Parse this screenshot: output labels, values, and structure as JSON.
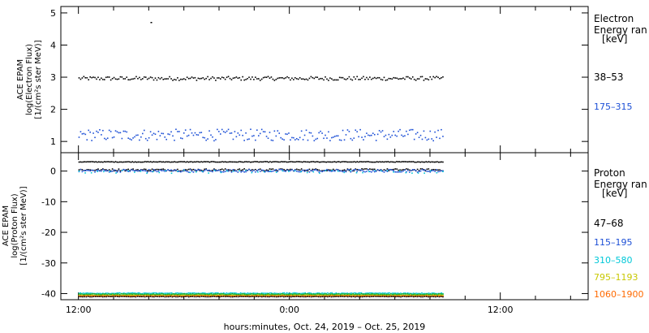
{
  "footer": {
    "xaxis_label": "hours:minutes, Oct. 24, 2019 – Oct. 25, 2019"
  },
  "x_tick_labels": [
    "12:00",
    "0:00",
    "12:00"
  ],
  "chart_data": [
    {
      "type": "scatter",
      "panel": "electron",
      "ylabel_lines": [
        "ACE EPAM",
        "log(Electron Flux)",
        "[1/(cm²s ster MeV)]"
      ],
      "legend_title_lines": [
        "Electron",
        "Energy ran",
        "[keV]"
      ],
      "x_unit": "hours from Oct. 24, 2019 12:00",
      "xlim": [
        -1,
        29
      ],
      "data_end": 20.7,
      "ylim": [
        0.65,
        5.2
      ],
      "yticks": [
        1,
        2,
        3,
        4,
        5
      ],
      "grid": false,
      "legend_placement": "right",
      "series": [
        {
          "name": "38–53",
          "color": "#000000",
          "level": 2.98,
          "jitter": 0.06,
          "count": 230
        },
        {
          "name": "175–315",
          "color": "#1c4fd6",
          "level": 1.22,
          "jitter": 0.18,
          "count": 230
        }
      ],
      "outliers": [
        {
          "x": 4.1,
          "y": 4.72
        }
      ]
    },
    {
      "type": "scatter",
      "panel": "proton",
      "ylabel_lines": [
        "ACE EPAM",
        "log(Proton Flux)",
        "[1/(cm²s ster MeV)]"
      ],
      "legend_title_lines": [
        "Proton",
        "Energy ran",
        "[keV]"
      ],
      "x_unit": "hours from Oct. 24, 2019 12:00",
      "xlim": [
        -1,
        29
      ],
      "data_end": 20.7,
      "ylim": [
        -42,
        6
      ],
      "yticks": [
        0,
        -10,
        -20,
        -30,
        -40
      ],
      "grid": false,
      "legend_placement": "right",
      "series": [
        {
          "name": "",
          "color": "#000000",
          "level": 3.2,
          "jitter": 0.1,
          "count": 260
        },
        {
          "name": "47–68",
          "color": "#000000",
          "level": 0.6,
          "jitter": 0.35,
          "count": 230
        },
        {
          "name": "115–195",
          "color": "#1c4fd6",
          "level": 0.3,
          "jitter": 0.45,
          "count": 230
        },
        {
          "name": "310–580",
          "color": "#00c8d8",
          "level": 0.0,
          "jitter": 0.5,
          "count": 60
        },
        {
          "name": "795–1193",
          "color": "#c8c800",
          "level": -40.3,
          "jitter": 0.15,
          "count": 260
        },
        {
          "name": "1060–1900",
          "color": "#ff6a00",
          "level": -40.6,
          "jitter": 0.1,
          "count": 260
        }
      ],
      "extra_levels": [
        {
          "color": "#00c8d8",
          "level": -39.7,
          "jitter": 0.15,
          "count": 260
        },
        {
          "color": "#22aa22",
          "level": -40.0,
          "jitter": 0.12,
          "count": 260
        },
        {
          "color": "#000000",
          "level": -40.8,
          "jitter": 0.08,
          "count": 200
        }
      ]
    }
  ]
}
